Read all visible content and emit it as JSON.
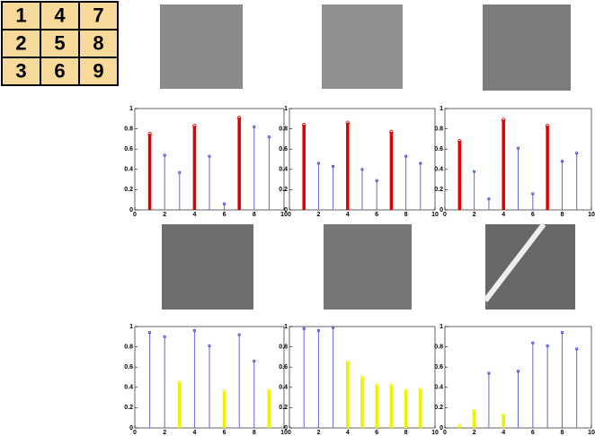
{
  "grid_labels": [
    [
      "1",
      "4",
      "7"
    ],
    [
      "2",
      "5",
      "8"
    ],
    [
      "3",
      "6",
      "9"
    ]
  ],
  "chart_data": [
    {
      "type": "stem",
      "x": [
        1,
        2,
        3,
        4,
        5,
        6,
        7,
        8,
        9
      ],
      "values": [
        0.75,
        0.54,
        0.37,
        0.83,
        0.53,
        0.06,
        0.91,
        0.82,
        0.72
      ],
      "colors": [
        "#e00000",
        "#6666dd",
        "#6666dd",
        "#e00000",
        "#6666dd",
        "#6666dd",
        "#e00000",
        "#6666dd",
        "#6666dd"
      ],
      "xlim": [
        0,
        10
      ],
      "xticks": [
        0,
        2,
        4,
        6,
        8,
        10
      ],
      "ylim": [
        0,
        1
      ],
      "yticks": [
        0,
        0.2,
        0.4,
        0.6,
        0.8,
        1
      ]
    },
    {
      "type": "stem",
      "x": [
        1,
        2,
        3,
        4,
        5,
        6,
        7,
        8,
        9
      ],
      "values": [
        0.84,
        0.46,
        0.43,
        0.86,
        0.4,
        0.29,
        0.77,
        0.53,
        0.46
      ],
      "colors": [
        "#e00000",
        "#6666dd",
        "#6666dd",
        "#e00000",
        "#6666dd",
        "#6666dd",
        "#e00000",
        "#6666dd",
        "#6666dd"
      ],
      "xlim": [
        0,
        10
      ],
      "xticks": [
        0,
        2,
        4,
        6,
        8,
        10
      ],
      "ylim": [
        0,
        1
      ],
      "yticks": [
        0,
        0.2,
        0.4,
        0.6,
        0.8,
        1
      ]
    },
    {
      "type": "stem",
      "x": [
        1,
        2,
        3,
        4,
        5,
        6,
        7,
        8,
        9
      ],
      "values": [
        0.68,
        0.38,
        0.11,
        0.89,
        0.61,
        0.16,
        0.83,
        0.48,
        0.56
      ],
      "colors": [
        "#e00000",
        "#6666dd",
        "#6666dd",
        "#e00000",
        "#6666dd",
        "#6666dd",
        "#e00000",
        "#6666dd",
        "#6666dd"
      ],
      "xlim": [
        0,
        10
      ],
      "xticks": [
        0,
        2,
        4,
        6,
        8,
        10
      ],
      "ylim": [
        0,
        1
      ],
      "yticks": [
        0,
        0.2,
        0.4,
        0.6,
        0.8,
        1
      ]
    },
    {
      "type": "stem",
      "x": [
        1,
        2,
        3,
        4,
        5,
        6,
        7,
        8,
        9
      ],
      "values": [
        0.94,
        0.9,
        0.45,
        0.96,
        0.81,
        0.36,
        0.92,
        0.66,
        0.37
      ],
      "colors": [
        "#6666dd",
        "#6666dd",
        "#f0f000",
        "#6666dd",
        "#6666dd",
        "#f0f000",
        "#6666dd",
        "#6666dd",
        "#f0f000"
      ],
      "xlim": [
        0,
        10
      ],
      "xticks": [
        0,
        2,
        4,
        6,
        8,
        10
      ],
      "ylim": [
        0,
        1
      ],
      "yticks": [
        0,
        0.2,
        0.4,
        0.6,
        0.8,
        1
      ]
    },
    {
      "type": "stem",
      "x": [
        1,
        2,
        3,
        4,
        5,
        6,
        7,
        8,
        9
      ],
      "values": [
        0.98,
        0.96,
        0.99,
        0.65,
        0.5,
        0.42,
        0.42,
        0.37,
        0.38
      ],
      "colors": [
        "#6666dd",
        "#6666dd",
        "#6666dd",
        "#f0f000",
        "#f0f000",
        "#f0f000",
        "#f0f000",
        "#f0f000",
        "#f0f000"
      ],
      "xlim": [
        0,
        10
      ],
      "xticks": [
        0,
        2,
        4,
        6,
        8,
        10
      ],
      "ylim": [
        0,
        1
      ],
      "yticks": [
        0,
        0.2,
        0.4,
        0.6,
        0.8,
        1
      ]
    },
    {
      "type": "stem",
      "x": [
        1,
        2,
        3,
        4,
        5,
        6,
        7,
        8,
        9
      ],
      "values": [
        0.02,
        0.17,
        0.54,
        0.13,
        0.56,
        0.84,
        0.81,
        0.94,
        0.78
      ],
      "colors": [
        "#f0f000",
        "#f0f000",
        "#6666dd",
        "#f0f000",
        "#6666dd",
        "#6666dd",
        "#6666dd",
        "#6666dd",
        "#6666dd"
      ],
      "xlim": [
        0,
        10
      ],
      "xticks": [
        0,
        2,
        4,
        6,
        8,
        10
      ],
      "ylim": [
        0,
        1
      ],
      "yticks": [
        0,
        0.2,
        0.4,
        0.6,
        0.8,
        1
      ]
    }
  ]
}
